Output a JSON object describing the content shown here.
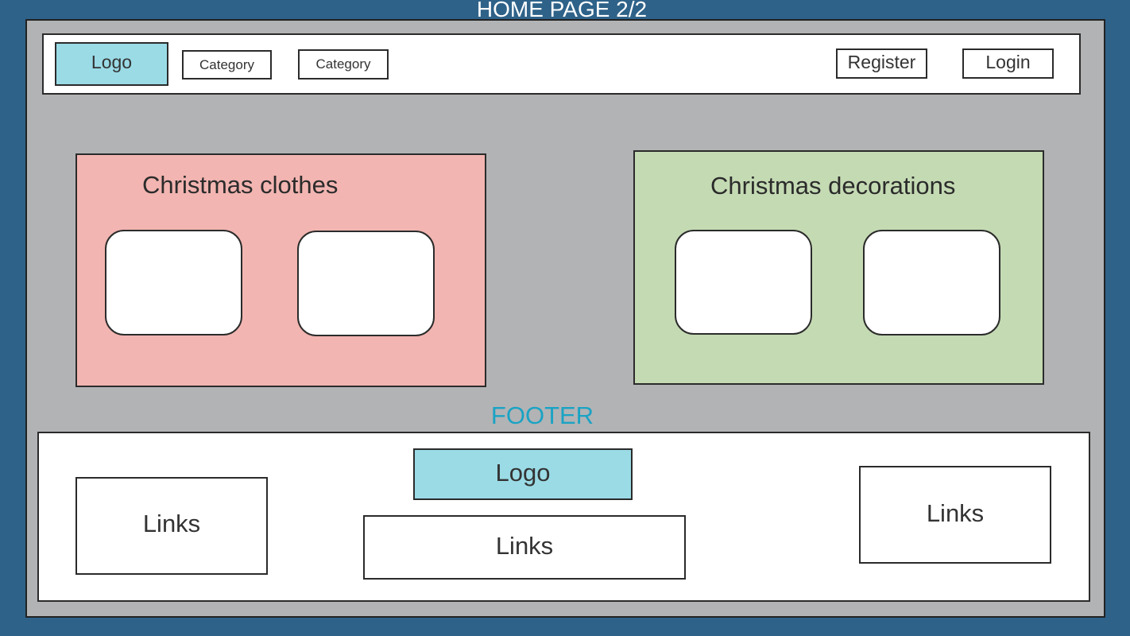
{
  "page": {
    "title": "HOME PAGE 2/2",
    "colors": {
      "outer_background": "#2e6289",
      "canvas": "#b2b3b5",
      "logo": "#9adbe6",
      "clothes_panel": "#f2b5b1",
      "decorations_panel": "#c4dab3",
      "footer_label": "#1aa3c4"
    }
  },
  "header": {
    "logo": "Logo",
    "nav": [
      "Category",
      "Category"
    ],
    "register": "Register",
    "login": "Login"
  },
  "main": {
    "panels": [
      {
        "title": "Christmas clothes"
      },
      {
        "title": "Christmas decorations"
      }
    ]
  },
  "footer": {
    "label": "FOOTER",
    "logo": "Logo",
    "links_left": "Links",
    "links_center": "Links",
    "links_right": "Links"
  }
}
